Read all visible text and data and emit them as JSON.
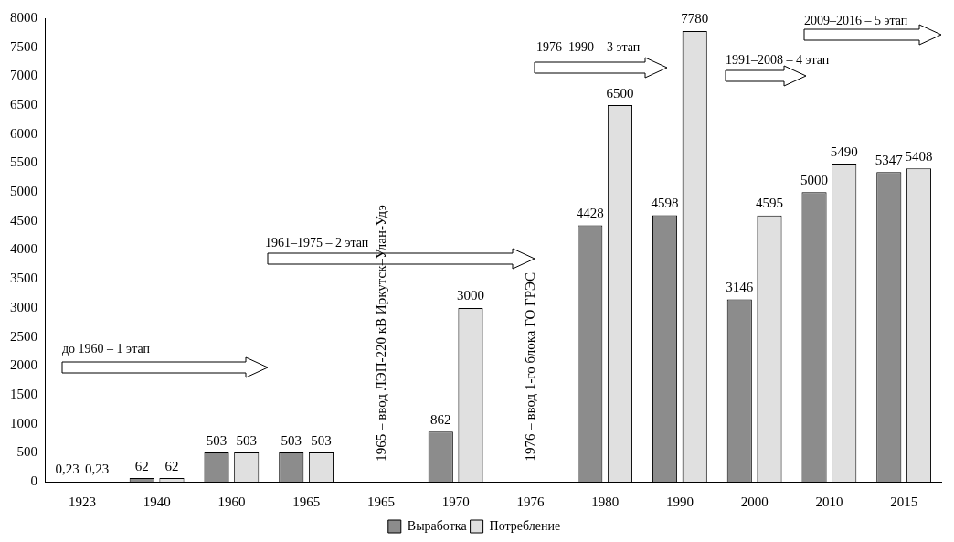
{
  "chart_data": {
    "type": "bar",
    "categories": [
      "1923",
      "1940",
      "1960",
      "1965",
      "1965",
      "1970",
      "1976",
      "1980",
      "1990",
      "2000",
      "2010",
      "2015"
    ],
    "series": [
      {
        "name": "Выработка",
        "color": "#8c8c8c",
        "values": [
          0.23,
          62,
          503,
          503,
          null,
          862,
          null,
          4428,
          4598,
          3146,
          5000,
          5347
        ],
        "value_labels": [
          "0,23",
          "62",
          "503",
          "503",
          null,
          "862",
          null,
          "4428",
          "4598",
          "3146",
          "5000",
          "5347"
        ]
      },
      {
        "name": "Потребление",
        "color": "#e0e0e0",
        "values": [
          0.23,
          62,
          503,
          503,
          null,
          3000,
          null,
          6500,
          7780,
          4595,
          5490,
          5408
        ],
        "value_labels": [
          "0,23",
          "62",
          "503",
          "503",
          null,
          "3000",
          null,
          "6500",
          "7780",
          "4595",
          "5490",
          "5408"
        ]
      }
    ],
    "ylim": [
      0,
      8000
    ],
    "yticks": [
      0,
      500,
      1000,
      1500,
      2000,
      2500,
      3000,
      3500,
      4000,
      4500,
      5000,
      5500,
      6000,
      6500,
      7000,
      7500,
      8000
    ],
    "grid": false,
    "legend": "bottom",
    "annotations": [
      "до 1960 – 1 этап",
      "1961–1975 – 2 этап",
      "1976–1990 – 3 этап",
      "1991–2008 – 4 этап",
      "2009–2016 – 5 этап",
      "1965 – ввод ЛЭП-220 кВ Иркутск–Улан-Удэ",
      "1976 – ввод 1-го блока ГО ГРЭС"
    ]
  }
}
